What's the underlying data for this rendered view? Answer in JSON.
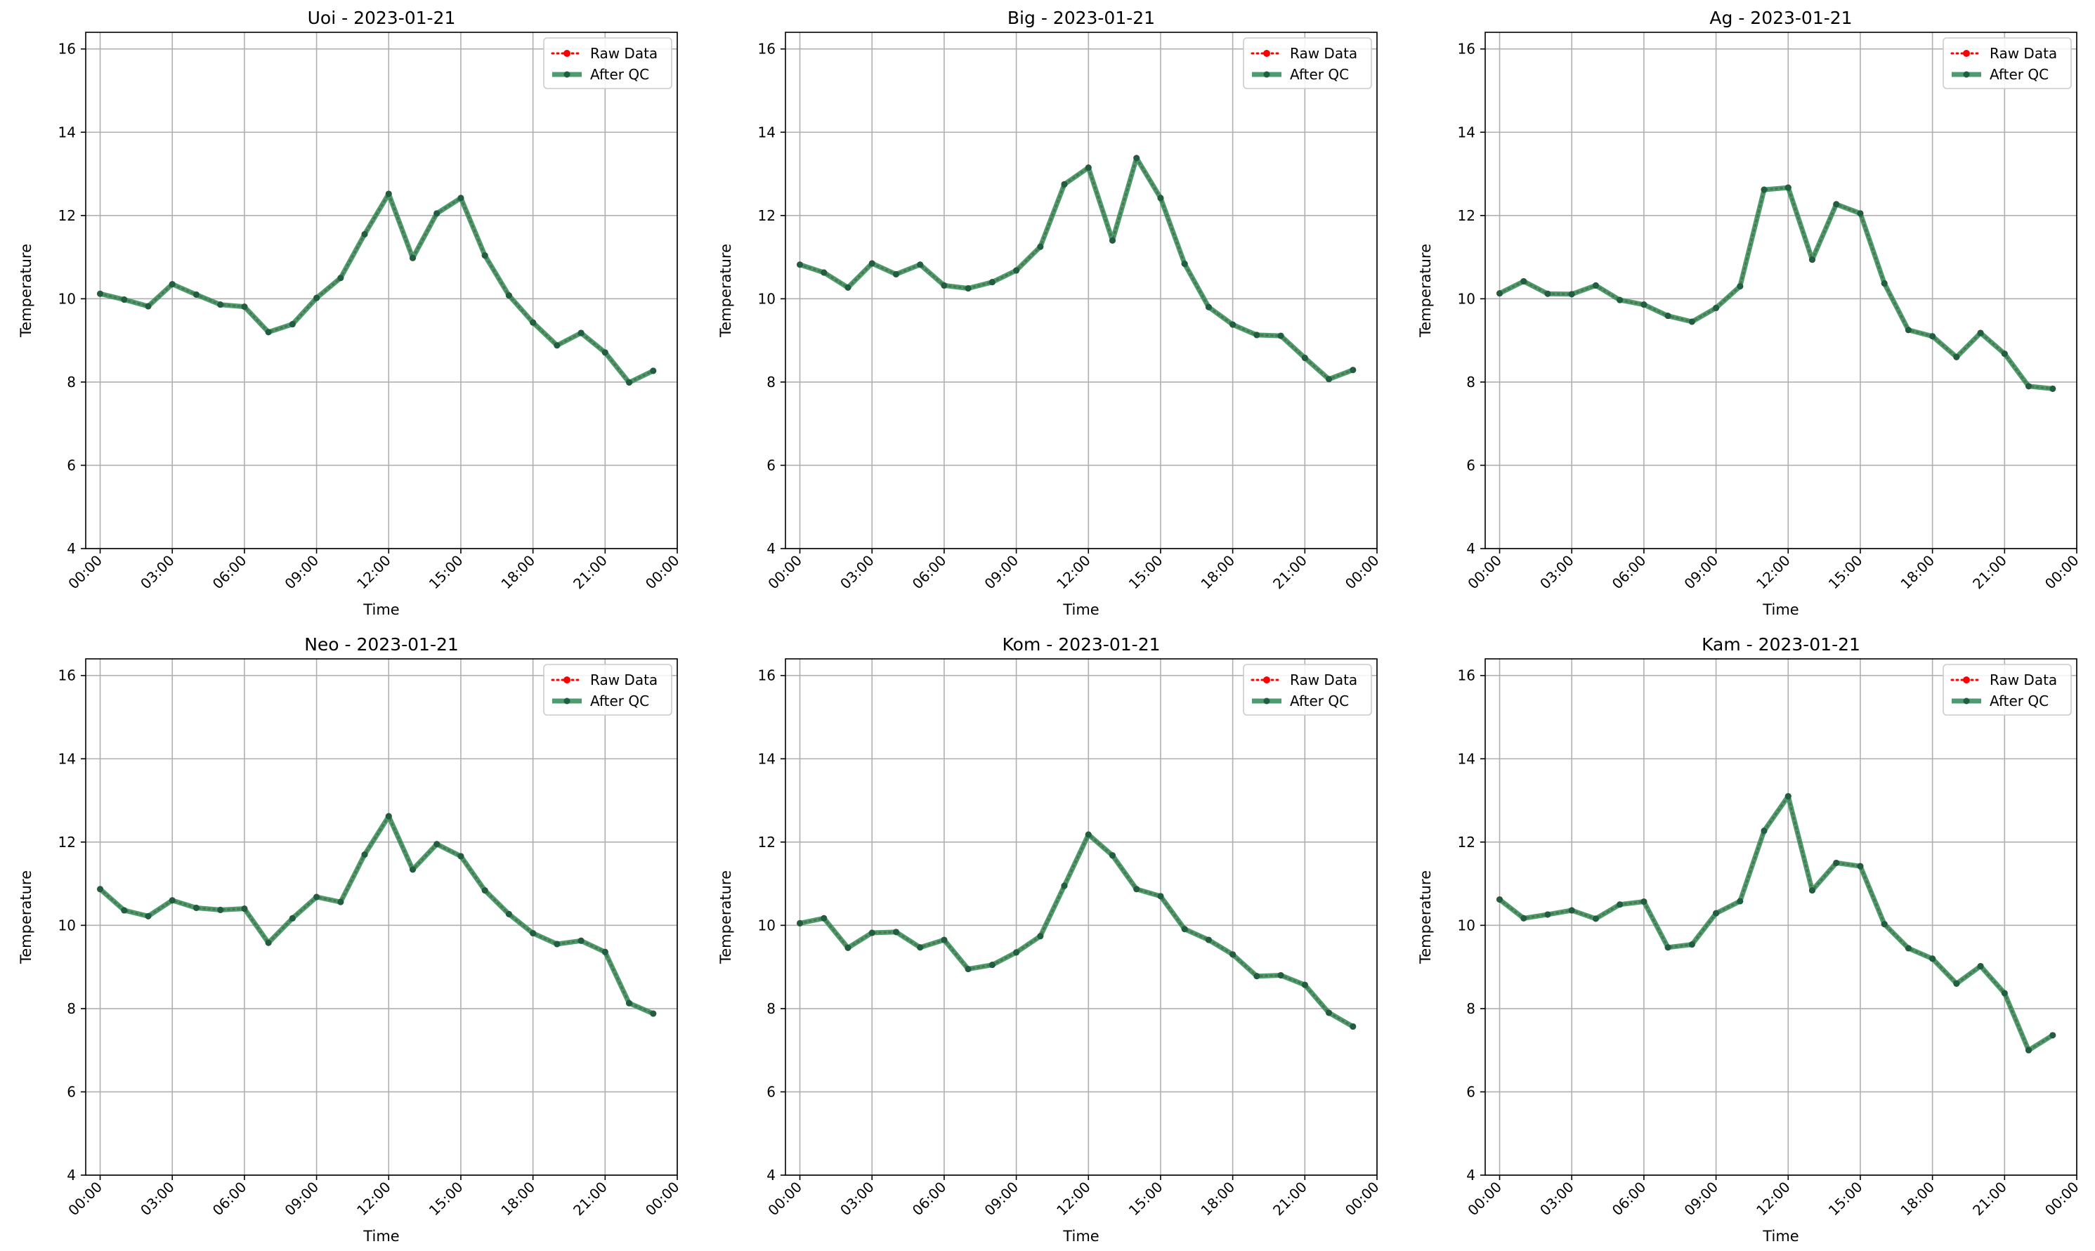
{
  "colors": {
    "raw": "#ff0000",
    "qc": "#2e8b57",
    "qc_marker": "#1f5e40",
    "grid": "#b0b0b0",
    "axes": "#000000",
    "legend_border": "#cccccc"
  },
  "chart_data": [
    {
      "type": "line",
      "title": "Uoi - 2023-01-21",
      "xlabel": "Time",
      "ylabel": "Temperature",
      "x_hours": [
        0,
        1,
        2,
        3,
        4,
        5,
        6,
        7,
        8,
        9,
        10,
        11,
        12,
        13,
        14,
        15,
        16,
        17,
        18,
        19,
        20,
        21,
        22,
        23
      ],
      "xlim_hours": [
        -0.6,
        24.0
      ],
      "xtick_hours": [
        0,
        3,
        6,
        9,
        12,
        15,
        18,
        21,
        24
      ],
      "xtick_labels": [
        "00:00",
        "03:00",
        "06:00",
        "09:00",
        "12:00",
        "15:00",
        "18:00",
        "21:00",
        "00:00"
      ],
      "ylim": [
        4,
        16.4
      ],
      "yticks": [
        4,
        6,
        8,
        10,
        12,
        14,
        16
      ],
      "grid": true,
      "legend": "top-right",
      "series": [
        {
          "name": "Raw Data",
          "style": "dotted-red",
          "values": [
            10.12,
            9.98,
            9.82,
            10.35,
            10.1,
            9.86,
            9.81,
            9.2,
            9.39,
            10.02,
            10.5,
            11.55,
            12.52,
            10.98,
            12.05,
            12.42,
            11.04,
            10.08,
            9.43,
            8.88,
            9.18,
            8.71,
            7.99,
            8.27
          ]
        },
        {
          "name": "After QC",
          "style": "solid-green",
          "values": [
            10.12,
            9.98,
            9.82,
            10.35,
            10.1,
            9.86,
            9.81,
            9.2,
            9.39,
            10.02,
            10.5,
            11.55,
            12.52,
            10.98,
            12.05,
            12.42,
            11.04,
            10.08,
            9.43,
            8.88,
            9.18,
            8.71,
            7.99,
            8.27
          ]
        }
      ]
    },
    {
      "type": "line",
      "title": "Big - 2023-01-21",
      "xlabel": "Time",
      "ylabel": "Temperature",
      "x_hours": [
        0,
        1,
        2,
        3,
        4,
        5,
        6,
        7,
        8,
        9,
        10,
        11,
        12,
        13,
        14,
        15,
        16,
        17,
        18,
        19,
        20,
        21,
        22,
        23
      ],
      "xlim_hours": [
        -0.6,
        24.0
      ],
      "xtick_hours": [
        0,
        3,
        6,
        9,
        12,
        15,
        18,
        21,
        24
      ],
      "xtick_labels": [
        "00:00",
        "03:00",
        "06:00",
        "09:00",
        "12:00",
        "15:00",
        "18:00",
        "21:00",
        "00:00"
      ],
      "ylim": [
        4,
        16.4
      ],
      "yticks": [
        4,
        6,
        8,
        10,
        12,
        14,
        16
      ],
      "grid": true,
      "legend": "top-right",
      "series": [
        {
          "name": "Raw Data",
          "style": "dotted-red",
          "values": [
            10.82,
            10.63,
            10.27,
            10.85,
            10.59,
            10.82,
            10.32,
            10.25,
            10.4,
            10.68,
            11.25,
            12.75,
            13.15,
            11.4,
            13.38,
            12.42,
            10.84,
            9.8,
            9.38,
            9.13,
            9.11,
            8.58,
            8.07,
            8.29
          ]
        },
        {
          "name": "After QC",
          "style": "solid-green",
          "values": [
            10.82,
            10.63,
            10.27,
            10.85,
            10.59,
            10.82,
            10.32,
            10.25,
            10.4,
            10.68,
            11.25,
            12.75,
            13.15,
            11.4,
            13.38,
            12.42,
            10.84,
            9.8,
            9.38,
            9.13,
            9.11,
            8.58,
            8.07,
            8.29
          ]
        }
      ]
    },
    {
      "type": "line",
      "title": "Ag - 2023-01-21",
      "xlabel": "Time",
      "ylabel": "Temperature",
      "x_hours": [
        0,
        1,
        2,
        3,
        4,
        5,
        6,
        7,
        8,
        9,
        10,
        11,
        12,
        13,
        14,
        15,
        16,
        17,
        18,
        19,
        20,
        21,
        22,
        23
      ],
      "xlim_hours": [
        -0.6,
        24.0
      ],
      "xtick_hours": [
        0,
        3,
        6,
        9,
        12,
        15,
        18,
        21,
        24
      ],
      "xtick_labels": [
        "00:00",
        "03:00",
        "06:00",
        "09:00",
        "12:00",
        "15:00",
        "18:00",
        "21:00",
        "00:00"
      ],
      "ylim": [
        4,
        16.4
      ],
      "yticks": [
        4,
        6,
        8,
        10,
        12,
        14,
        16
      ],
      "grid": true,
      "legend": "top-right",
      "series": [
        {
          "name": "Raw Data",
          "style": "dotted-red",
          "values": [
            10.13,
            10.42,
            10.12,
            10.11,
            10.32,
            9.97,
            9.86,
            9.59,
            9.45,
            9.78,
            10.3,
            12.62,
            12.67,
            10.94,
            12.27,
            12.05,
            10.37,
            9.25,
            9.1,
            8.6,
            9.18,
            8.68,
            7.9,
            7.84
          ]
        },
        {
          "name": "After QC",
          "style": "solid-green",
          "values": [
            10.13,
            10.42,
            10.12,
            10.11,
            10.32,
            9.97,
            9.86,
            9.59,
            9.45,
            9.78,
            10.3,
            12.62,
            12.67,
            10.94,
            12.27,
            12.05,
            10.37,
            9.25,
            9.1,
            8.6,
            9.18,
            8.68,
            7.9,
            7.84
          ]
        }
      ]
    },
    {
      "type": "line",
      "title": "Neo - 2023-01-21",
      "xlabel": "Time",
      "ylabel": "Temperature",
      "x_hours": [
        0,
        1,
        2,
        3,
        4,
        5,
        6,
        7,
        8,
        9,
        10,
        11,
        12,
        13,
        14,
        15,
        16,
        17,
        18,
        19,
        20,
        21,
        22,
        23
      ],
      "xlim_hours": [
        -0.6,
        24.0
      ],
      "xtick_hours": [
        0,
        3,
        6,
        9,
        12,
        15,
        18,
        21,
        24
      ],
      "xtick_labels": [
        "00:00",
        "03:00",
        "06:00",
        "09:00",
        "12:00",
        "15:00",
        "18:00",
        "21:00",
        "00:00"
      ],
      "ylim": [
        4,
        16.4
      ],
      "yticks": [
        4,
        6,
        8,
        10,
        12,
        14,
        16
      ],
      "grid": true,
      "legend": "top-right",
      "series": [
        {
          "name": "Raw Data",
          "style": "dotted-red",
          "values": [
            10.87,
            10.36,
            10.22,
            10.6,
            10.42,
            10.37,
            10.4,
            9.58,
            10.17,
            10.68,
            10.56,
            11.7,
            12.62,
            11.34,
            11.95,
            11.66,
            10.84,
            10.27,
            9.81,
            9.55,
            9.63,
            9.36,
            8.13,
            7.88
          ]
        },
        {
          "name": "After QC",
          "style": "solid-green",
          "values": [
            10.87,
            10.36,
            10.22,
            10.6,
            10.42,
            10.37,
            10.4,
            9.58,
            10.17,
            10.68,
            10.56,
            11.7,
            12.62,
            11.34,
            11.95,
            11.66,
            10.84,
            10.27,
            9.81,
            9.55,
            9.63,
            9.36,
            8.13,
            7.88
          ]
        }
      ]
    },
    {
      "type": "line",
      "title": "Kom - 2023-01-21",
      "xlabel": "Time",
      "ylabel": "Temperature",
      "x_hours": [
        0,
        1,
        2,
        3,
        4,
        5,
        6,
        7,
        8,
        9,
        10,
        11,
        12,
        13,
        14,
        15,
        16,
        17,
        18,
        19,
        20,
        21,
        22,
        23
      ],
      "xlim_hours": [
        -0.6,
        24.0
      ],
      "xtick_hours": [
        0,
        3,
        6,
        9,
        12,
        15,
        18,
        21,
        24
      ],
      "xtick_labels": [
        "00:00",
        "03:00",
        "06:00",
        "09:00",
        "12:00",
        "15:00",
        "18:00",
        "21:00",
        "00:00"
      ],
      "ylim": [
        4,
        16.4
      ],
      "yticks": [
        4,
        6,
        8,
        10,
        12,
        14,
        16
      ],
      "grid": true,
      "legend": "top-right",
      "series": [
        {
          "name": "Raw Data",
          "style": "dotted-red",
          "values": [
            10.05,
            10.17,
            9.46,
            9.82,
            9.84,
            9.47,
            9.65,
            8.95,
            9.05,
            9.35,
            9.74,
            10.95,
            12.18,
            11.68,
            10.87,
            10.7,
            9.91,
            9.65,
            9.3,
            8.78,
            8.8,
            8.57,
            7.9,
            7.57
          ]
        },
        {
          "name": "After QC",
          "style": "solid-green",
          "values": [
            10.05,
            10.17,
            9.46,
            9.82,
            9.84,
            9.47,
            9.65,
            8.95,
            9.05,
            9.35,
            9.74,
            10.95,
            12.18,
            11.68,
            10.87,
            10.7,
            9.91,
            9.65,
            9.3,
            8.78,
            8.8,
            8.57,
            7.9,
            7.57
          ]
        }
      ]
    },
    {
      "type": "line",
      "title": "Kam - 2023-01-21",
      "xlabel": "Time",
      "ylabel": "Temperature",
      "x_hours": [
        0,
        1,
        2,
        3,
        4,
        5,
        6,
        7,
        8,
        9,
        10,
        11,
        12,
        13,
        14,
        15,
        16,
        17,
        18,
        19,
        20,
        21,
        22,
        23
      ],
      "xlim_hours": [
        -0.6,
        24.0
      ],
      "xtick_hours": [
        0,
        3,
        6,
        9,
        12,
        15,
        18,
        21,
        24
      ],
      "xtick_labels": [
        "00:00",
        "03:00",
        "06:00",
        "09:00",
        "12:00",
        "15:00",
        "18:00",
        "21:00",
        "00:00"
      ],
      "ylim": [
        4,
        16.4
      ],
      "yticks": [
        4,
        6,
        8,
        10,
        12,
        14,
        16
      ],
      "grid": true,
      "legend": "top-right",
      "series": [
        {
          "name": "Raw Data",
          "style": "dotted-red",
          "values": [
            10.62,
            10.17,
            10.26,
            10.36,
            10.16,
            10.5,
            10.57,
            9.47,
            9.54,
            10.29,
            10.58,
            12.27,
            13.1,
            10.84,
            11.5,
            11.42,
            10.03,
            9.45,
            9.2,
            8.6,
            9.02,
            8.37,
            7.0,
            7.36
          ]
        },
        {
          "name": "After QC",
          "style": "solid-green",
          "values": [
            10.62,
            10.17,
            10.26,
            10.36,
            10.16,
            10.5,
            10.57,
            9.47,
            9.54,
            10.29,
            10.58,
            12.27,
            13.1,
            10.84,
            11.5,
            11.42,
            10.03,
            9.45,
            9.2,
            8.6,
            9.02,
            8.37,
            7.0,
            7.36
          ]
        }
      ]
    }
  ]
}
